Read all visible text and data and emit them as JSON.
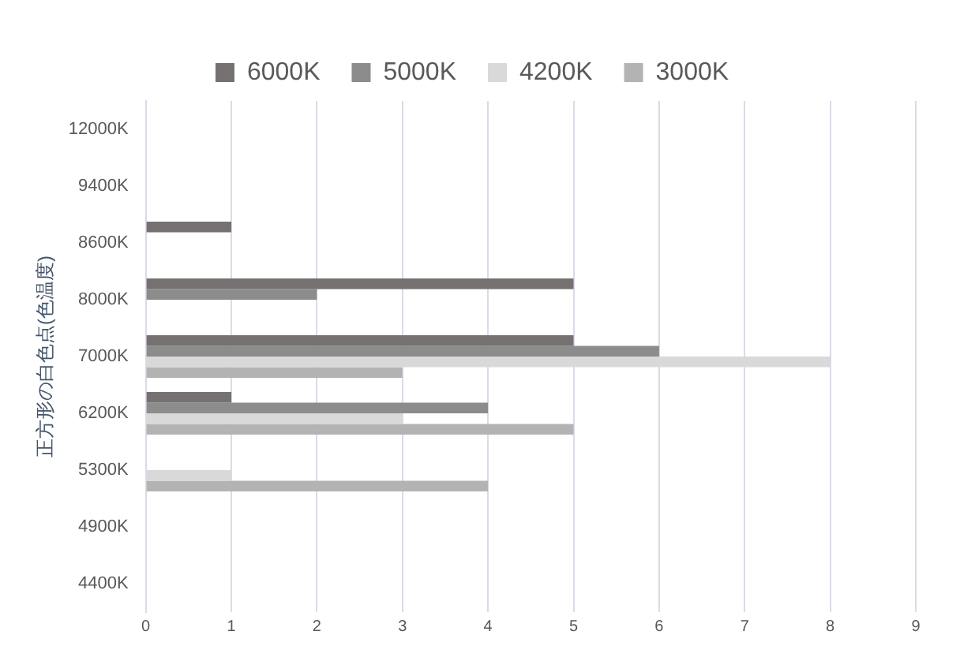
{
  "chart_data": {
    "type": "bar",
    "orientation": "horizontal",
    "ylabel": "正方形の白色点(色温度)",
    "categories": [
      "12000K",
      "9400K",
      "8600K",
      "8000K",
      "7000K",
      "6200K",
      "5300K",
      "4900K",
      "4400K"
    ],
    "series": [
      {
        "name": "6000K",
        "color": "#767171",
        "values": [
          null,
          null,
          1,
          5,
          5,
          1,
          null,
          null,
          null
        ]
      },
      {
        "name": "5000K",
        "color": "#8c8c8c",
        "values": [
          null,
          null,
          null,
          2,
          6,
          4,
          null,
          null,
          null
        ]
      },
      {
        "name": "4200K",
        "color": "#d9d9d9",
        "values": [
          null,
          null,
          null,
          null,
          8,
          3,
          1,
          null,
          null
        ]
      },
      {
        "name": "3000K",
        "color": "#b3b3b3",
        "values": [
          null,
          null,
          null,
          null,
          3,
          5,
          4,
          null,
          null
        ]
      }
    ],
    "xlim": [
      0,
      9
    ],
    "xticks": [
      0,
      1,
      2,
      3,
      4,
      5,
      6,
      7,
      8,
      9
    ],
    "grid": "x",
    "legend": "top"
  }
}
